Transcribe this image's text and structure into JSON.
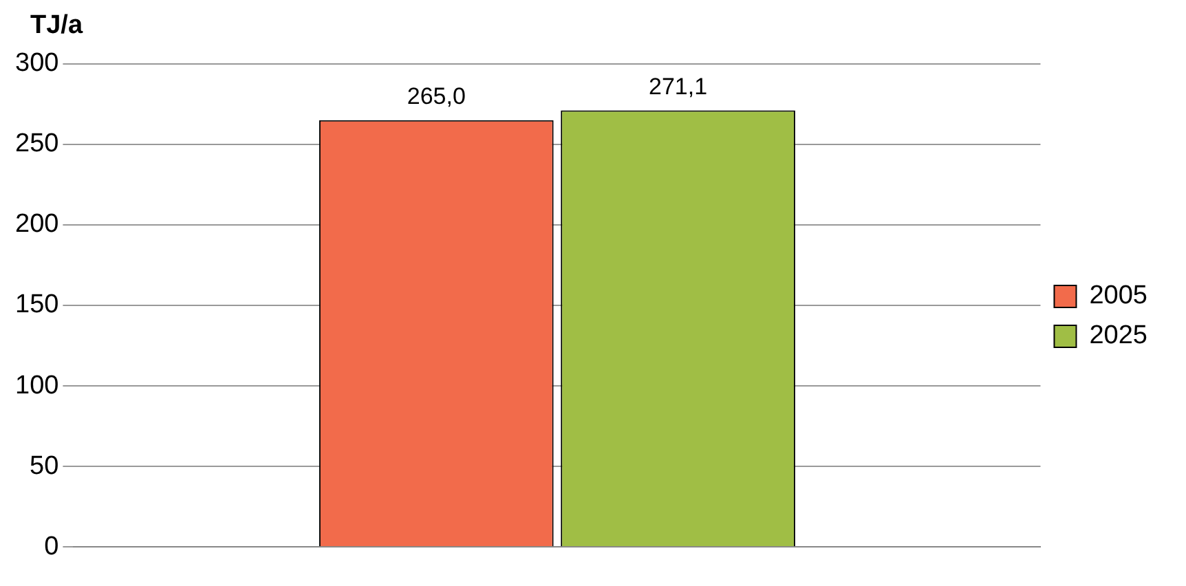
{
  "chart_data": {
    "type": "bar",
    "ylabel": "TJ/a",
    "categories": [
      null
    ],
    "series": [
      {
        "name": "2005",
        "color": "#f26b4b",
        "values": [
          265.0
        ],
        "value_labels": [
          "265,0"
        ]
      },
      {
        "name": "2025",
        "color": "#a0be45",
        "values": [
          271.1
        ],
        "value_labels": [
          "271,1"
        ]
      }
    ],
    "ylim": [
      0,
      300
    ],
    "yticks": [
      0,
      50,
      100,
      150,
      200,
      250,
      300
    ],
    "grid": "y",
    "legend": "right"
  }
}
